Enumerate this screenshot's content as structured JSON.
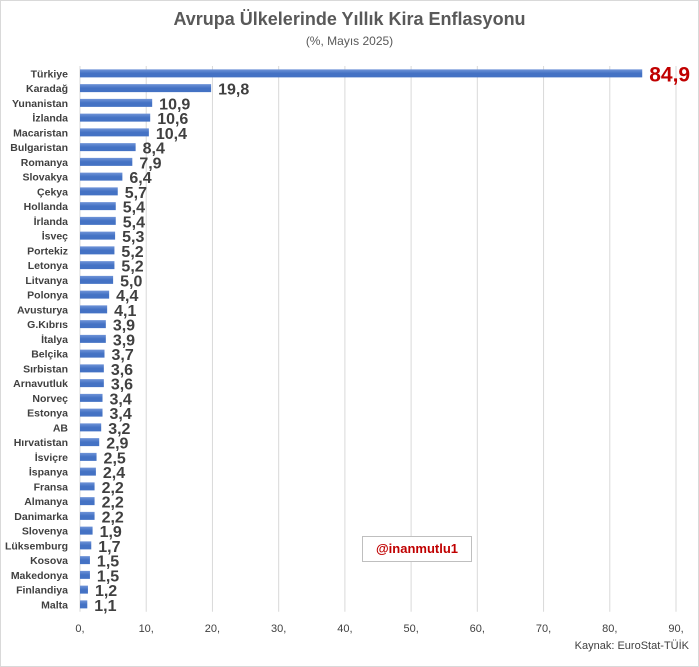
{
  "title": "Avrupa Ülkelerinde Yıllık Kira Enflasyonu",
  "subtitle": "(%, Mayıs 2025)",
  "watermark": "@inanmutlu1",
  "source": "Kaynak: EuroStat-TÜİK",
  "colors": {
    "bar": "#4472c4",
    "bar_light": "#6f94d8",
    "highlight_label": "#c00000",
    "label": "#404040",
    "grid": "#d9d9d9"
  },
  "chart_data": {
    "type": "bar",
    "orientation": "horizontal",
    "title": "Avrupa Ülkelerinde Yıllık Kira Enflasyonu",
    "subtitle": "(%, Mayıs 2025)",
    "categories": [
      "Türkiye",
      "Karadağ",
      "Yunanistan",
      "İzlanda",
      "Macaristan",
      "Bulgaristan",
      "Romanya",
      "Slovakya",
      "Çekya",
      "Hollanda",
      "İrlanda",
      "İsveç",
      "Portekiz",
      "Letonya",
      "Litvanya",
      "Polonya",
      "Avusturya",
      "G.Kıbrıs",
      "İtalya",
      "Belçika",
      "Sırbistan",
      "Arnavutluk",
      "Norveç",
      "Estonya",
      "AB",
      "Hırvatistan",
      "İsviçre",
      "İspanya",
      "Fransa",
      "Almanya",
      "Danimarka",
      "Slovenya",
      "Lüksemburg",
      "Kosova",
      "Makedonya",
      "Finlandiya",
      "Malta"
    ],
    "values": [
      84.9,
      19.8,
      10.9,
      10.6,
      10.4,
      8.4,
      7.9,
      6.4,
      5.7,
      5.4,
      5.4,
      5.3,
      5.2,
      5.2,
      5.0,
      4.4,
      4.1,
      3.9,
      3.9,
      3.7,
      3.6,
      3.6,
      3.4,
      3.4,
      3.2,
      2.9,
      2.5,
      2.4,
      2.2,
      2.2,
      2.2,
      1.9,
      1.7,
      1.5,
      1.5,
      1.2,
      1.1
    ],
    "value_labels": [
      "84,9",
      "19,8",
      "10,9",
      "10,6",
      "10,4",
      "8,4",
      "7,9",
      "6,4",
      "5,7",
      "5,4",
      "5,4",
      "5,3",
      "5,2",
      "5,2",
      "5,0",
      "4,4",
      "4,1",
      "3,9",
      "3,9",
      "3,7",
      "3,6",
      "3,6",
      "3,4",
      "3,4",
      "3,2",
      "2,9",
      "2,5",
      "2,4",
      "2,2",
      "2,2",
      "2,2",
      "1,9",
      "1,7",
      "1,5",
      "1,5",
      "1,2",
      "1,1"
    ],
    "xlim": [
      0,
      90
    ],
    "xticks": [
      0,
      10,
      20,
      30,
      40,
      50,
      60,
      70,
      80,
      90
    ],
    "xtick_labels": [
      "0,",
      "10,",
      "20,",
      "30,",
      "40,",
      "50,",
      "60,",
      "70,",
      "80,",
      "90,"
    ],
    "grid": true,
    "legend": false
  }
}
